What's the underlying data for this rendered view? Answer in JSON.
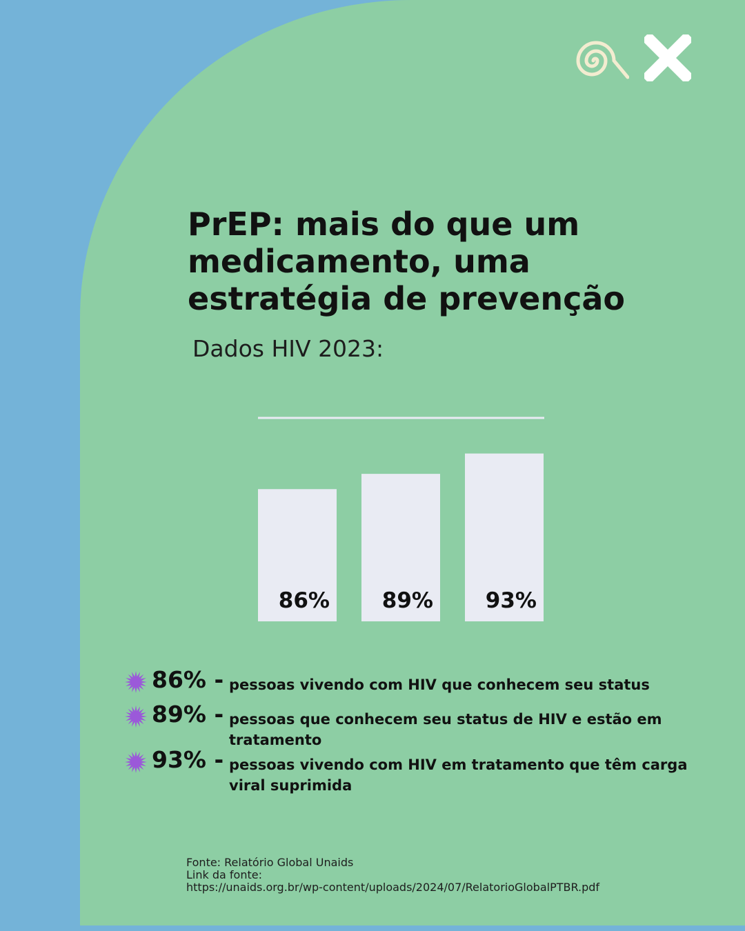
{
  "title": "PrEP: mais do que um medicamento, uma estratégia de prevenção",
  "subtitle": "Dados HIV 2023:",
  "brand": {
    "spiral_color": "#f3ecd0",
    "x_color": "#ffffff"
  },
  "colors": {
    "background": "#74b3d8",
    "panel": "#8dcea4",
    "bar": "#e9ebf3",
    "star": "#9b59d9"
  },
  "chart_data": {
    "type": "bar",
    "values": [
      86,
      89,
      93
    ],
    "labels": [
      "86%",
      "89%",
      "93%"
    ],
    "ylim": [
      0,
      100
    ],
    "top_line": 100
  },
  "legend": [
    {
      "value": "86%",
      "separator": "-",
      "text": "pessoas vivendo com HIV que conhecem seu status"
    },
    {
      "value": "89%",
      "separator": "-",
      "text": "pessoas que conhecem seu status de HIV e estão em tratamento"
    },
    {
      "value": "93%",
      "separator": "-",
      "text": "pessoas vivendo com HIV em tratamento que têm carga viral suprimida"
    }
  ],
  "source": {
    "line1": "Fonte: Relatório Global Unaids",
    "line2": "Link da fonte:",
    "url": "https://unaids.org.br/wp-content/uploads/2024/07/RelatorioGlobalPTBR.pdf"
  }
}
